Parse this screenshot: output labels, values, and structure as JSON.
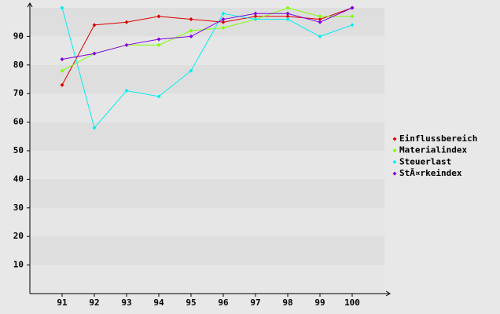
{
  "chart_data": {
    "type": "line",
    "x": [
      91,
      92,
      93,
      94,
      95,
      96,
      97,
      98,
      99,
      100
    ],
    "xlim": [
      90,
      101
    ],
    "xticks": [
      91,
      92,
      93,
      94,
      95,
      96,
      97,
      98,
      99,
      100
    ],
    "ylim": [
      0,
      100
    ],
    "yticks": [
      10,
      20,
      30,
      40,
      50,
      60,
      70,
      80,
      90
    ],
    "grid": true,
    "legend": "right",
    "series": [
      {
        "name": "Einflussbereich",
        "color": "#dd0000",
        "values": [
          73,
          94,
          95,
          97,
          96,
          95,
          97,
          97,
          96,
          100
        ]
      },
      {
        "name": "Materialindex",
        "color": "#80ff00",
        "values": [
          78,
          84,
          87,
          87,
          92,
          93,
          96,
          100,
          97,
          97
        ]
      },
      {
        "name": "Steuerlast",
        "color": "#00f0f0",
        "values": [
          100,
          58,
          71,
          69,
          78,
          98,
          96,
          96,
          90,
          94
        ]
      },
      {
        "name": "StÃ¤rkeindex",
        "color": "#8000e0",
        "values": [
          82,
          84,
          87,
          89,
          90,
          96,
          98,
          98,
          95,
          100
        ]
      }
    ]
  }
}
